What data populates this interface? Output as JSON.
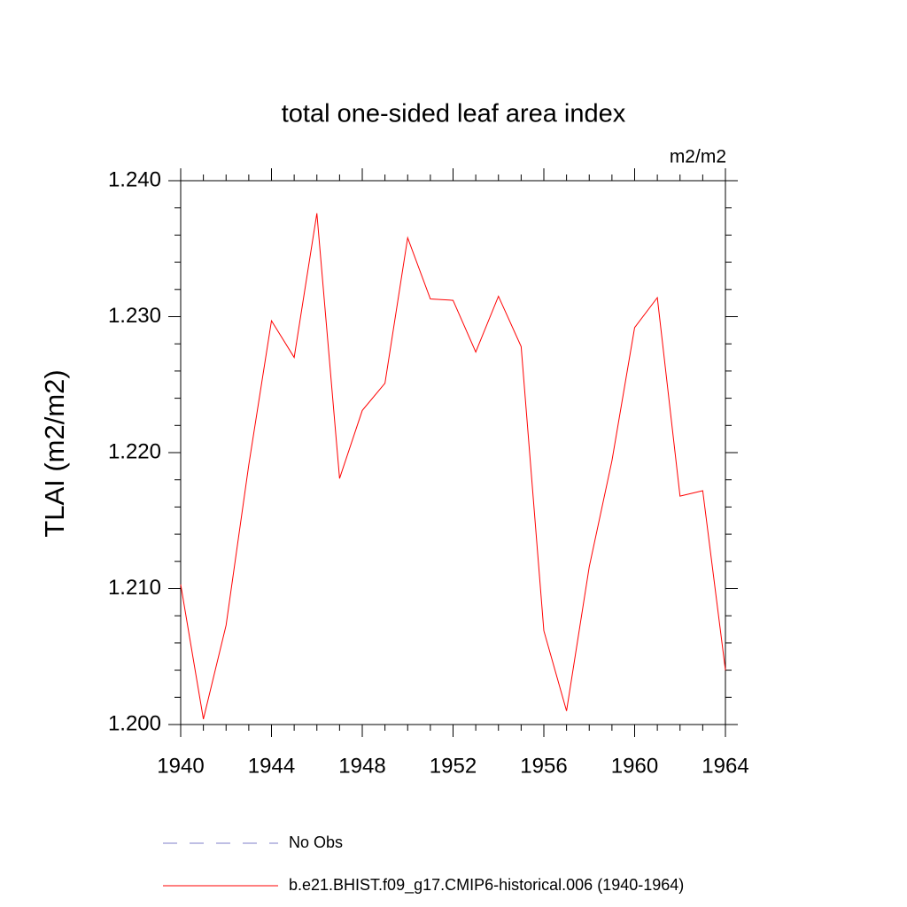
{
  "chart_data": {
    "type": "line",
    "title": "total one-sided leaf area index",
    "units": "m2/m2",
    "y_label": "TLAI  (m2/m2)",
    "x": [
      1940,
      1941,
      1942,
      1943,
      1944,
      1945,
      1946,
      1947,
      1948,
      1949,
      1950,
      1951,
      1952,
      1953,
      1954,
      1955,
      1956,
      1957,
      1958,
      1959,
      1960,
      1961,
      1962,
      1963,
      1964
    ],
    "series": [
      {
        "name": "b.e21.BHIST.f09_g17.CMIP6-historical.006 (1940-1964)",
        "color": "#ff0000",
        "values": [
          1.2103,
          1.2004,
          1.2073,
          1.2191,
          1.2297,
          1.227,
          1.2376,
          1.2181,
          1.2231,
          1.2251,
          1.2358,
          1.2313,
          1.2312,
          1.2274,
          1.2315,
          1.2278,
          1.2069,
          1.201,
          1.2116,
          1.2194,
          1.2292,
          1.2314,
          1.2168,
          1.2172,
          1.204
        ]
      }
    ],
    "legend_entries": [
      {
        "name": "No Obs",
        "color": "#7f7fc8",
        "dashed": true
      }
    ],
    "xlim": [
      1940,
      1964
    ],
    "xticks": [
      1940,
      1944,
      1948,
      1952,
      1956,
      1960,
      1964
    ],
    "ylim": [
      1.2,
      1.24
    ],
    "yticks": [
      {
        "value": 1.2,
        "label": "1.200"
      },
      {
        "value": 1.21,
        "label": "1.210"
      },
      {
        "value": 1.22,
        "label": "1.220"
      },
      {
        "value": 1.23,
        "label": "1.230"
      },
      {
        "value": 1.24,
        "label": "1.240"
      }
    ],
    "grid": false
  }
}
